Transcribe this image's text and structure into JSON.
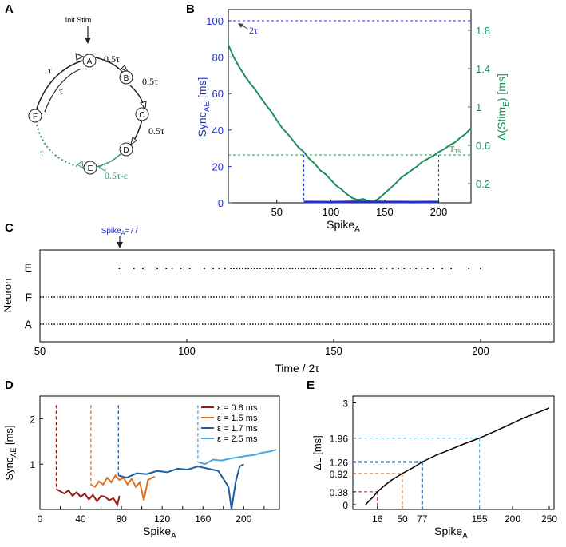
{
  "panel_labels": {
    "a": "A",
    "b": "B",
    "c": "C",
    "d": "D",
    "e": "E"
  },
  "panel_a": {
    "init_stim": "Init Stim",
    "nodes": [
      "A",
      "B",
      "C",
      "D",
      "E",
      "F"
    ],
    "delays": {
      "ab": "0.5τ",
      "bc": "0.5τ",
      "cd": "0.5τ",
      "ed": "0.5τ-ε",
      "af_outer": "τ",
      "af_inner": "τ",
      "fe": "τ"
    },
    "colors": {
      "black": "#222222",
      "green": "#2e9460"
    }
  },
  "panel_b": {
    "ylabel_left": "Sync",
    "ylabel_left_sub": "AE",
    "ylabel_left_unit": " [ms]",
    "ylabel_right": "Δ(Stim",
    "ylabel_right_sub": "E",
    "ylabel_right_unit": ") [ms]",
    "xlabel": "Spike",
    "xlabel_sub": "A",
    "marker_2tau": "2τ",
    "marker_tts": "T",
    "marker_tts_sub": "TS",
    "colors": {
      "left": "#1f2fd0",
      "right": "#1e8f5a"
    }
  },
  "panel_c": {
    "spike_label": "Spike",
    "spike_label_sub": "A",
    "spike_label_val": "=77",
    "ylabel": "Neuron",
    "xlabel": "Time / 2τ",
    "rows": [
      "E",
      "F",
      "A"
    ],
    "colors": {
      "label": "#1f2fd0"
    }
  },
  "panel_d": {
    "ylabel": "Sync",
    "ylabel_sub": "AE",
    "ylabel_unit": " [ms]",
    "xlabel": "Spike",
    "xlabel_sub": "A"
  },
  "panel_e": {
    "ylabel": "ΔL  [ms]",
    "xlabel": "Spike",
    "xlabel_sub": "A",
    "yticks_extra": [
      "0.38",
      "0.92",
      "1.26",
      "1.96"
    ]
  },
  "chart_data": [
    {
      "id": "B",
      "type": "line",
      "xlabel": "SpikeA",
      "ylabel": "SyncAE [ms]",
      "ylabel_right": "Δ(StimE) [ms]",
      "xlim": [
        5,
        230
      ],
      "ylim": [
        0,
        100
      ],
      "ylim_right": [
        0,
        1.9
      ],
      "xticks": [
        50,
        100,
        150,
        200
      ],
      "yticks": [
        0,
        20,
        40,
        60,
        80,
        100
      ],
      "yticks_right": [
        0.2,
        0.6,
        1,
        1.4,
        1.8
      ],
      "yticks_right_labels": [
        "0.2",
        "0.6",
        "1",
        "1.4",
        "1.8"
      ],
      "ref_lines": {
        "two_tau": 100,
        "tts_right": 0.5,
        "window": [
          75,
          200
        ]
      },
      "series": [
        {
          "name": "Δ(StimE)",
          "axis": "right",
          "x": [
            5,
            10,
            15,
            20,
            25,
            30,
            35,
            40,
            45,
            50,
            55,
            60,
            65,
            70,
            75,
            80,
            85,
            90,
            95,
            100,
            105,
            110,
            115,
            120,
            125,
            130,
            135,
            140,
            145,
            150,
            155,
            160,
            165,
            170,
            175,
            180,
            185,
            190,
            195,
            200,
            205,
            210,
            215,
            220,
            225,
            230
          ],
          "y": [
            1.65,
            1.52,
            1.42,
            1.33,
            1.25,
            1.18,
            1.1,
            1.02,
            0.95,
            0.86,
            0.78,
            0.72,
            0.65,
            0.58,
            0.53,
            0.46,
            0.41,
            0.34,
            0.3,
            0.24,
            0.18,
            0.14,
            0.09,
            0.05,
            0.03,
            0.04,
            0.02,
            0.01,
            0.05,
            0.1,
            0.15,
            0.2,
            0.26,
            0.3,
            0.34,
            0.38,
            0.43,
            0.46,
            0.49,
            0.53,
            0.56,
            0.6,
            0.63,
            0.68,
            0.72,
            0.78
          ]
        },
        {
          "name": "SyncAE",
          "axis": "left",
          "x": [
            75,
            100,
            125,
            150,
            175,
            200
          ],
          "y": [
            0.5,
            0.4,
            0.6,
            0.5,
            0.4,
            0.5
          ]
        }
      ]
    },
    {
      "id": "C",
      "type": "scatter",
      "xlabel": "Time / 2τ",
      "ylabel": "Neuron",
      "xlim": [
        50,
        225
      ],
      "xticks": [
        50,
        100,
        150,
        200
      ],
      "categories": [
        "E",
        "F",
        "A"
      ],
      "spike_marker": 77,
      "e_spikes": [
        77,
        82,
        85,
        90,
        93,
        95,
        98,
        101,
        106,
        109,
        111,
        113,
        115,
        116,
        117,
        118,
        119,
        120,
        121,
        122,
        123,
        124,
        125,
        126,
        127,
        128,
        129,
        130,
        131,
        132,
        133,
        134,
        135,
        136,
        137,
        138,
        139,
        140,
        141,
        142,
        143,
        144,
        145,
        146,
        147,
        148,
        149,
        150,
        151,
        152,
        153,
        154,
        155,
        156,
        157,
        158,
        159,
        160,
        161,
        162,
        163,
        164,
        166,
        168,
        170,
        172,
        174,
        176,
        178,
        180,
        182,
        184,
        187,
        190,
        196,
        200
      ]
    },
    {
      "id": "D",
      "type": "line",
      "xlabel": "SpikeA",
      "ylabel": "SyncAE [ms]",
      "xlim": [
        0,
        235
      ],
      "ylim": [
        0,
        2.5
      ],
      "xticks": [
        0,
        20,
        40,
        60,
        80,
        100,
        120,
        140,
        160,
        180,
        200,
        220
      ],
      "yticks": [
        1,
        2
      ],
      "legend": "top-right",
      "series": [
        {
          "name": "ε = 0.8 ms",
          "color": "#9a1a1a",
          "marker": 16,
          "x": [
            16,
            20,
            24,
            28,
            32,
            36,
            40,
            44,
            48,
            52,
            56,
            60,
            64,
            68,
            72,
            76,
            78
          ],
          "y": [
            0.45,
            0.4,
            0.35,
            0.42,
            0.3,
            0.38,
            0.28,
            0.35,
            0.22,
            0.32,
            0.18,
            0.3,
            0.28,
            0.2,
            0.25,
            0.1,
            0.3
          ]
        },
        {
          "name": "ε = 1.5 ms",
          "color": "#e07020",
          "marker": 50,
          "x": [
            50,
            54,
            58,
            62,
            66,
            70,
            74,
            78,
            82,
            86,
            90,
            94,
            98,
            102,
            106,
            110,
            113
          ],
          "y": [
            0.55,
            0.5,
            0.62,
            0.55,
            0.7,
            0.6,
            0.75,
            0.65,
            0.7,
            0.55,
            0.68,
            0.5,
            0.6,
            0.2,
            0.65,
            0.7,
            0.72
          ]
        },
        {
          "name": "ε = 1.7 ms",
          "color": "#1f5fa0",
          "marker": 77,
          "x": [
            77,
            85,
            95,
            105,
            115,
            125,
            135,
            145,
            155,
            165,
            175,
            185,
            188,
            192,
            196,
            200
          ],
          "y": [
            0.75,
            0.7,
            0.8,
            0.78,
            0.85,
            0.82,
            0.9,
            0.88,
            0.95,
            0.9,
            0.85,
            0.5,
            0.0,
            0.6,
            0.95,
            1.0
          ]
        },
        {
          "name": "ε = 2.5 ms",
          "color": "#44aadd",
          "marker": 155,
          "x": [
            155,
            162,
            170,
            178,
            186,
            194,
            202,
            210,
            218,
            226,
            232
          ],
          "y": [
            1.05,
            1.0,
            1.1,
            1.08,
            1.12,
            1.15,
            1.18,
            1.2,
            1.25,
            1.28,
            1.32
          ]
        }
      ]
    },
    {
      "id": "E",
      "type": "line",
      "xlabel": "SpikeA",
      "ylabel": "ΔL [ms]",
      "xlim": [
        0,
        250
      ],
      "ylim": [
        0,
        3.2
      ],
      "xticks": [
        16,
        50,
        77,
        155,
        200,
        250
      ],
      "yticks": [
        0,
        0.38,
        0.92,
        1.26,
        1.96,
        3
      ],
      "yticks_labels": [
        "0",
        "0.38",
        "0.92",
        "1.26",
        "1.96",
        "3"
      ],
      "series": [
        {
          "name": "ΔL",
          "color": "#000000",
          "x": [
            0,
            5,
            10,
            16,
            25,
            35,
            50,
            65,
            77,
            95,
            115,
            135,
            155,
            175,
            195,
            215,
            235,
            250
          ],
          "y": [
            0.0,
            0.12,
            0.22,
            0.38,
            0.55,
            0.72,
            0.92,
            1.1,
            1.26,
            1.45,
            1.62,
            1.8,
            1.96,
            2.15,
            2.35,
            2.55,
            2.72,
            2.85
          ]
        }
      ],
      "guides": [
        {
          "x": 16,
          "y": 0.38,
          "color": "#9a1a1a"
        },
        {
          "x": 50,
          "y": 0.92,
          "color": "#e07020"
        },
        {
          "x": 77,
          "y": 1.26,
          "color": "#1f5fa0"
        },
        {
          "x": 155,
          "y": 1.96,
          "color": "#44aadd"
        }
      ]
    }
  ]
}
